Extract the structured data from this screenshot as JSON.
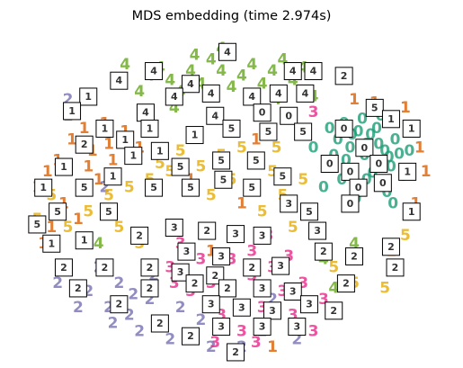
{
  "chart_data": {
    "type": "scatter",
    "title": "MDS embedding (time 2.974s)",
    "xlabel": "",
    "ylabel": "",
    "axes": "off",
    "grid": false,
    "legend": "none",
    "xlim": [
      -1.0,
      1.0
    ],
    "ylim": [
      -1.0,
      1.0
    ],
    "series": [
      {
        "digit": "0",
        "color": "#1b9e77",
        "points": [
          [
            0.55,
            0.45
          ],
          [
            0.62,
            0.4
          ],
          [
            0.68,
            0.38
          ],
          [
            0.72,
            0.32
          ],
          [
            0.58,
            0.3
          ],
          [
            0.65,
            0.25
          ],
          [
            0.75,
            0.28
          ],
          [
            0.7,
            0.2
          ],
          [
            0.6,
            0.15
          ],
          [
            0.78,
            0.18
          ],
          [
            0.66,
            0.1
          ],
          [
            0.74,
            0.08
          ],
          [
            0.56,
            0.22
          ],
          [
            0.8,
            0.35
          ],
          [
            0.52,
            0.35
          ],
          [
            0.63,
            0.05
          ],
          [
            0.71,
            0.42
          ],
          [
            0.69,
            0.14
          ],
          [
            0.77,
            0.24
          ],
          [
            0.59,
            0.38
          ],
          [
            0.48,
            0.42
          ],
          [
            0.84,
            0.12
          ],
          [
            0.66,
            0.32
          ],
          [
            0.54,
            0.1
          ],
          [
            0.76,
            0.02
          ],
          [
            0.61,
            -0.02
          ],
          [
            0.82,
            0.26
          ],
          [
            0.5,
            0.25
          ],
          [
            0.87,
            0.28
          ],
          [
            0.73,
            0.5
          ],
          [
            0.64,
            0.48
          ],
          [
            0.4,
            0.3
          ],
          [
            0.26,
            -0.05
          ],
          [
            0.45,
            0.05
          ],
          [
            0.79,
            -0.05
          ]
        ]
      },
      {
        "digit": "1",
        "color": "#d95f02",
        "points": [
          [
            -0.85,
            0.22
          ],
          [
            -0.9,
            0.15
          ],
          [
            -0.78,
            0.35
          ],
          [
            -0.72,
            0.42
          ],
          [
            -0.68,
            0.28
          ],
          [
            -0.6,
            0.32
          ],
          [
            -0.82,
            -0.05
          ],
          [
            -0.75,
            -0.15
          ],
          [
            -0.88,
            -0.2
          ],
          [
            -0.65,
            0.1
          ],
          [
            -0.7,
            0.18
          ],
          [
            -0.95,
            0.05
          ],
          [
            -0.58,
            0.22
          ],
          [
            -0.52,
            0.4
          ],
          [
            -0.8,
            0.5
          ],
          [
            -0.92,
            -0.3
          ],
          [
            0.88,
            0.4
          ],
          [
            0.92,
            0.3
          ],
          [
            0.85,
            0.55
          ],
          [
            0.95,
            0.15
          ],
          [
            0.6,
            0.6
          ],
          [
            0.7,
            0.58
          ],
          [
            -0.1,
            -0.35
          ],
          [
            0.05,
            -0.05
          ],
          [
            -0.2,
            0.1
          ],
          [
            0.35,
            0.65
          ],
          [
            0.2,
            -0.95
          ],
          [
            0.78,
            -0.35
          ],
          [
            0.9,
            -0.05
          ],
          [
            -0.62,
            0.45
          ],
          [
            -0.45,
            0.3
          ],
          [
            0.12,
            0.35
          ]
        ]
      },
      {
        "digit": "2",
        "color": "#7570b3",
        "points": [
          [
            -0.7,
            -0.6
          ],
          [
            -0.6,
            -0.7
          ],
          [
            -0.5,
            -0.75
          ],
          [
            -0.45,
            -0.85
          ],
          [
            -0.35,
            -0.8
          ],
          [
            -0.55,
            -0.55
          ],
          [
            -0.65,
            -0.45
          ],
          [
            -0.4,
            -0.65
          ],
          [
            -0.3,
            -0.9
          ],
          [
            -0.2,
            -0.88
          ],
          [
            -0.25,
            -0.7
          ],
          [
            -0.48,
            -0.62
          ],
          [
            -0.58,
            -0.8
          ],
          [
            -0.38,
            -0.5
          ],
          [
            -0.75,
            -0.7
          ],
          [
            -0.15,
            -0.78
          ],
          [
            0.05,
            -0.95
          ],
          [
            0.15,
            -0.85
          ],
          [
            -0.8,
            0.6
          ],
          [
            -0.62,
            0.05
          ],
          [
            0.2,
            -0.65
          ],
          [
            -0.85,
            -0.55
          ],
          [
            0.32,
            -0.9
          ],
          [
            -0.1,
            -0.95
          ]
        ]
      },
      {
        "digit": "3",
        "color": "#e7298a",
        "points": [
          [
            -0.1,
            -0.55
          ],
          [
            0.0,
            -0.6
          ],
          [
            0.1,
            -0.5
          ],
          [
            0.15,
            -0.7
          ],
          [
            -0.05,
            -0.75
          ],
          [
            0.05,
            -0.85
          ],
          [
            0.2,
            -0.45
          ],
          [
            0.25,
            -0.6
          ],
          [
            -0.15,
            -0.4
          ],
          [
            0.1,
            -0.35
          ],
          [
            -0.2,
            -0.6
          ],
          [
            0.3,
            -0.75
          ],
          [
            0.35,
            -0.55
          ],
          [
            0.0,
            -0.4
          ],
          [
            -0.25,
            -0.3
          ],
          [
            0.18,
            -0.25
          ],
          [
            0.4,
            -0.85
          ],
          [
            -0.08,
            -0.92
          ],
          [
            0.45,
            -0.65
          ],
          [
            0.28,
            -0.38
          ],
          [
            -0.3,
            -0.45
          ],
          [
            0.12,
            -0.92
          ],
          [
            0.4,
            0.52
          ],
          [
            -0.28,
            -0.55
          ]
        ]
      },
      {
        "digit": "4",
        "color": "#66a61e",
        "points": [
          [
            -0.1,
            0.85
          ],
          [
            -0.05,
            0.78
          ],
          [
            0.0,
            0.88
          ],
          [
            0.05,
            0.75
          ],
          [
            0.1,
            0.82
          ],
          [
            -0.15,
            0.7
          ],
          [
            -0.2,
            0.78
          ],
          [
            0.15,
            0.7
          ],
          [
            -0.25,
            0.65
          ],
          [
            -0.3,
            0.72
          ],
          [
            -0.35,
            0.8
          ],
          [
            -0.4,
            0.75
          ],
          [
            0.2,
            0.78
          ],
          [
            0.25,
            0.85
          ],
          [
            -0.12,
            0.62
          ],
          [
            -0.45,
            0.65
          ],
          [
            0.3,
            0.72
          ],
          [
            -0.05,
            0.92
          ],
          [
            -0.18,
            0.88
          ],
          [
            0.08,
            0.62
          ],
          [
            0.35,
            0.8
          ],
          [
            0.22,
            0.6
          ],
          [
            0.5,
            -0.58
          ],
          [
            0.45,
            -0.4
          ],
          [
            0.6,
            -0.3
          ],
          [
            -0.65,
            -0.3
          ],
          [
            -0.28,
            0.55
          ],
          [
            0.4,
            0.62
          ],
          [
            -0.52,
            0.82
          ],
          [
            0.0,
            0.68
          ]
        ]
      },
      {
        "digit": "5",
        "color": "#e6ab02",
        "points": [
          [
            -0.8,
            -0.2
          ],
          [
            -0.7,
            -0.1
          ],
          [
            -0.6,
            0.0
          ],
          [
            -0.5,
            0.05
          ],
          [
            -0.4,
            0.1
          ],
          [
            -0.3,
            0.15
          ],
          [
            -0.2,
            0.05
          ],
          [
            -0.1,
            0.0
          ],
          [
            0.0,
            0.1
          ],
          [
            0.1,
            0.05
          ],
          [
            0.2,
            0.15
          ],
          [
            0.25,
            0.0
          ],
          [
            0.15,
            -0.1
          ],
          [
            -0.35,
            0.2
          ],
          [
            -0.25,
            0.28
          ],
          [
            -0.05,
            0.25
          ],
          [
            0.05,
            0.3
          ],
          [
            -0.55,
            -0.2
          ],
          [
            -0.88,
            0.0
          ],
          [
            0.3,
            -0.2
          ],
          [
            0.35,
            0.1
          ],
          [
            0.5,
            -0.45
          ],
          [
            0.6,
            -0.55
          ],
          [
            0.75,
            -0.58
          ],
          [
            -0.45,
            -0.3
          ],
          [
            -0.15,
            0.18
          ],
          [
            0.22,
            0.3
          ],
          [
            -0.95,
            -0.15
          ],
          [
            0.85,
            -0.25
          ]
        ]
      }
    ],
    "thumbnails": [
      {
        "digit": "4",
        "x": -0.02,
        "y": 0.9
      },
      {
        "digit": "4",
        "x": -0.38,
        "y": 0.78
      },
      {
        "digit": "4",
        "x": 0.3,
        "y": 0.78
      },
      {
        "digit": "4",
        "x": 0.4,
        "y": 0.78
      },
      {
        "digit": "2",
        "x": 0.55,
        "y": 0.75
      },
      {
        "digit": "4",
        "x": -0.55,
        "y": 0.72
      },
      {
        "digit": "4",
        "x": -0.2,
        "y": 0.7
      },
      {
        "digit": "4",
        "x": -0.28,
        "y": 0.62
      },
      {
        "digit": "4",
        "x": -0.1,
        "y": 0.64
      },
      {
        "digit": "4",
        "x": 0.1,
        "y": 0.62
      },
      {
        "digit": "4",
        "x": 0.23,
        "y": 0.64
      },
      {
        "digit": "4",
        "x": 0.36,
        "y": 0.64
      },
      {
        "digit": "1",
        "x": -0.7,
        "y": 0.62
      },
      {
        "digit": "1",
        "x": -0.78,
        "y": 0.53
      },
      {
        "digit": "4",
        "x": -0.42,
        "y": 0.52
      },
      {
        "digit": "4",
        "x": -0.08,
        "y": 0.5
      },
      {
        "digit": "0",
        "x": 0.15,
        "y": 0.52
      },
      {
        "digit": "0",
        "x": 0.28,
        "y": 0.5
      },
      {
        "digit": "5",
        "x": 0.7,
        "y": 0.55
      },
      {
        "digit": "1",
        "x": 0.78,
        "y": 0.48
      },
      {
        "digit": "1",
        "x": 0.88,
        "y": 0.42
      },
      {
        "digit": "1",
        "x": -0.62,
        "y": 0.42
      },
      {
        "digit": "2",
        "x": -0.72,
        "y": 0.32
      },
      {
        "digit": "1",
        "x": -0.52,
        "y": 0.35
      },
      {
        "digit": "1",
        "x": -0.4,
        "y": 0.42
      },
      {
        "digit": "1",
        "x": -0.18,
        "y": 0.38
      },
      {
        "digit": "5",
        "x": 0.0,
        "y": 0.42
      },
      {
        "digit": "5",
        "x": 0.18,
        "y": 0.4
      },
      {
        "digit": "5",
        "x": 0.35,
        "y": 0.4
      },
      {
        "digit": "0",
        "x": 0.55,
        "y": 0.42
      },
      {
        "digit": "0",
        "x": 0.65,
        "y": 0.3
      },
      {
        "digit": "0",
        "x": 0.72,
        "y": 0.2
      },
      {
        "digit": "1",
        "x": -0.48,
        "y": 0.25
      },
      {
        "digit": "1",
        "x": -0.35,
        "y": 0.28
      },
      {
        "digit": "5",
        "x": -0.25,
        "y": 0.18
      },
      {
        "digit": "5",
        "x": -0.05,
        "y": 0.22
      },
      {
        "digit": "5",
        "x": 0.12,
        "y": 0.22
      },
      {
        "digit": "0",
        "x": 0.48,
        "y": 0.2
      },
      {
        "digit": "0",
        "x": 0.58,
        "y": 0.15
      },
      {
        "digit": "1",
        "x": 0.86,
        "y": 0.15
      },
      {
        "digit": "1",
        "x": -0.82,
        "y": 0.18
      },
      {
        "digit": "1",
        "x": -0.58,
        "y": 0.12
      },
      {
        "digit": "5",
        "x": -0.38,
        "y": 0.05
      },
      {
        "digit": "5",
        "x": -0.2,
        "y": 0.05
      },
      {
        "digit": "5",
        "x": -0.04,
        "y": 0.1
      },
      {
        "digit": "5",
        "x": 0.1,
        "y": 0.05
      },
      {
        "digit": "5",
        "x": 0.25,
        "y": 0.12
      },
      {
        "digit": "0",
        "x": 0.62,
        "y": 0.05
      },
      {
        "digit": "0",
        "x": 0.74,
        "y": 0.08
      },
      {
        "digit": "1",
        "x": -0.92,
        "y": 0.05
      },
      {
        "digit": "5",
        "x": -0.72,
        "y": 0.05
      },
      {
        "digit": "3",
        "x": 0.28,
        "y": -0.05
      },
      {
        "digit": "0",
        "x": 0.58,
        "y": -0.05
      },
      {
        "digit": "5",
        "x": -0.85,
        "y": -0.1
      },
      {
        "digit": "5",
        "x": -0.6,
        "y": -0.1
      },
      {
        "digit": "5",
        "x": 0.38,
        "y": -0.1
      },
      {
        "digit": "1",
        "x": 0.88,
        "y": -0.1
      },
      {
        "digit": "5",
        "x": -0.95,
        "y": -0.18
      },
      {
        "digit": "3",
        "x": -0.28,
        "y": -0.2
      },
      {
        "digit": "2",
        "x": -0.12,
        "y": -0.22
      },
      {
        "digit": "3",
        "x": 0.02,
        "y": -0.24
      },
      {
        "digit": "3",
        "x": 0.15,
        "y": -0.25
      },
      {
        "digit": "3",
        "x": 0.42,
        "y": -0.22
      },
      {
        "digit": "2",
        "x": -0.45,
        "y": -0.25
      },
      {
        "digit": "1",
        "x": -0.88,
        "y": -0.3
      },
      {
        "digit": "1",
        "x": -0.72,
        "y": -0.28
      },
      {
        "digit": "3",
        "x": -0.22,
        "y": -0.35
      },
      {
        "digit": "3",
        "x": -0.05,
        "y": -0.38
      },
      {
        "digit": "2",
        "x": 0.45,
        "y": -0.35
      },
      {
        "digit": "2",
        "x": 0.6,
        "y": -0.38
      },
      {
        "digit": "2",
        "x": 0.78,
        "y": -0.32
      },
      {
        "digit": "2",
        "x": -0.82,
        "y": -0.45
      },
      {
        "digit": "2",
        "x": -0.62,
        "y": -0.45
      },
      {
        "digit": "2",
        "x": -0.4,
        "y": -0.45
      },
      {
        "digit": "3",
        "x": -0.25,
        "y": -0.48
      },
      {
        "digit": "2",
        "x": -0.08,
        "y": -0.5
      },
      {
        "digit": "2",
        "x": 0.1,
        "y": -0.45
      },
      {
        "digit": "3",
        "x": 0.24,
        "y": -0.44
      },
      {
        "digit": "2",
        "x": 0.8,
        "y": -0.45
      },
      {
        "digit": "2",
        "x": -0.75,
        "y": -0.58
      },
      {
        "digit": "2",
        "x": -0.4,
        "y": -0.58
      },
      {
        "digit": "2",
        "x": -0.18,
        "y": -0.55
      },
      {
        "digit": "2",
        "x": -0.02,
        "y": -0.58
      },
      {
        "digit": "3",
        "x": 0.15,
        "y": -0.58
      },
      {
        "digit": "3",
        "x": 0.3,
        "y": -0.6
      },
      {
        "digit": "2",
        "x": 0.56,
        "y": -0.55
      },
      {
        "digit": "3",
        "x": -0.1,
        "y": -0.68
      },
      {
        "digit": "3",
        "x": 0.05,
        "y": -0.7
      },
      {
        "digit": "3",
        "x": 0.2,
        "y": -0.72
      },
      {
        "digit": "3",
        "x": 0.38,
        "y": -0.68
      },
      {
        "digit": "2",
        "x": -0.55,
        "y": -0.68
      },
      {
        "digit": "2",
        "x": 0.5,
        "y": -0.72
      },
      {
        "digit": "2",
        "x": -0.35,
        "y": -0.8
      },
      {
        "digit": "3",
        "x": -0.05,
        "y": -0.82
      },
      {
        "digit": "3",
        "x": 0.15,
        "y": -0.82
      },
      {
        "digit": "3",
        "x": 0.32,
        "y": -0.82
      },
      {
        "digit": "2",
        "x": -0.2,
        "y": -0.88
      },
      {
        "digit": "2",
        "x": 0.02,
        "y": -0.98
      }
    ]
  }
}
